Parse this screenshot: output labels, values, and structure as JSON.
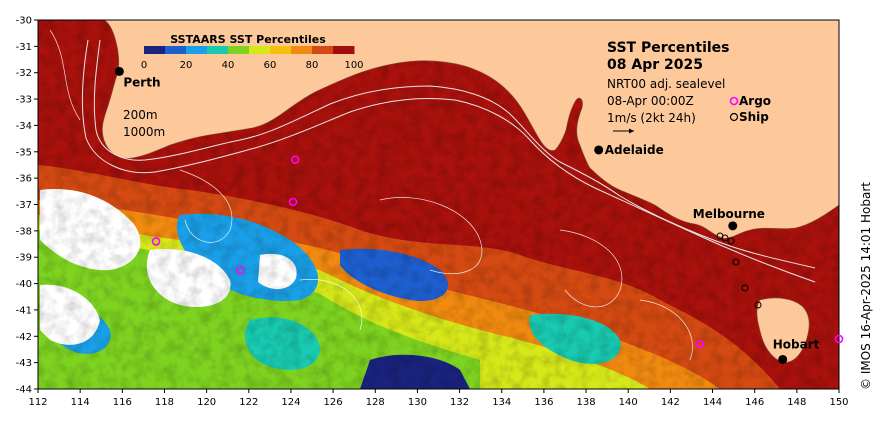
{
  "colorbar": {
    "title": "SSTAARS SST Percentiles",
    "ticks": [
      "0",
      "20",
      "40",
      "60",
      "80",
      "100"
    ],
    "colors": [
      "#1a237e",
      "#1e5fd0",
      "#1aa0e8",
      "#19c9b0",
      "#7ed321",
      "#d6e81a",
      "#f4c20d",
      "#f18a10",
      "#d44a12",
      "#a30d0d"
    ]
  },
  "info": {
    "title": "SST Percentiles",
    "date": "08 Apr 2025",
    "product": "NRT00 adj. sealevel",
    "time": "08-Apr 00:00Z",
    "argo_label": "Argo",
    "ship_label": "Ship",
    "velocity_scale": "1m/s (2kt 24h)"
  },
  "contour_labels": {
    "c200": "200m",
    "c1000": "1000m"
  },
  "cities": [
    {
      "name": "Perth",
      "lon": 115.86,
      "lat": -31.95
    },
    {
      "name": "Adelaide",
      "lon": 138.6,
      "lat": -34.93
    },
    {
      "name": "Melbourne",
      "lon": 144.96,
      "lat": -37.81
    },
    {
      "name": "Hobart",
      "lon": 147.33,
      "lat": -42.88
    }
  ],
  "argo_floats": [
    {
      "lon": 124.2,
      "lat": -35.3
    },
    {
      "lon": 124.1,
      "lat": -36.9
    },
    {
      "lon": 117.6,
      "lat": -38.4
    },
    {
      "lon": 121.6,
      "lat": -39.5
    },
    {
      "lon": 143.4,
      "lat": -42.3
    },
    {
      "lon": 150.0,
      "lat": -42.1
    }
  ],
  "axes": {
    "x_ticks": [
      "112",
      "114",
      "116",
      "118",
      "120",
      "122",
      "124",
      "126",
      "128",
      "130",
      "132",
      "134",
      "136",
      "138",
      "140",
      "142",
      "144",
      "146",
      "148",
      "150"
    ],
    "y_ticks": [
      "-30",
      "-31",
      "-32",
      "-33",
      "-34",
      "-35",
      "-36",
      "-37",
      "-38",
      "-39",
      "-40",
      "-41",
      "-42",
      "-43",
      "-44"
    ],
    "lon_range": [
      112,
      150
    ],
    "lat_range": [
      -44,
      -30
    ]
  },
  "credit": "© IMOS 16-Apr-2025 14:01 Hobart",
  "colors": {
    "land": "#fdc99b",
    "warm": "#a8110c",
    "axis": "#000000",
    "argo": "#ff00ff"
  }
}
